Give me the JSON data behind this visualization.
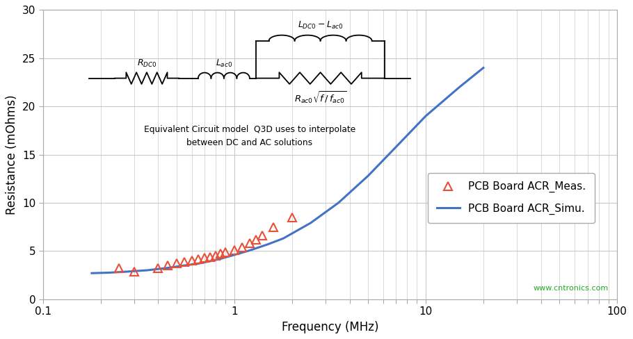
{
  "meas_freq": [
    0.25,
    0.3,
    0.4,
    0.45,
    0.5,
    0.55,
    0.6,
    0.65,
    0.7,
    0.75,
    0.8,
    0.85,
    0.9,
    1.0,
    1.1,
    1.2,
    1.3,
    1.4,
    1.6,
    2.0
  ],
  "meas_res": [
    3.2,
    2.85,
    3.2,
    3.5,
    3.7,
    3.9,
    4.0,
    4.15,
    4.3,
    4.4,
    4.55,
    4.7,
    4.85,
    5.1,
    5.4,
    5.8,
    6.2,
    6.6,
    7.5,
    8.5
  ],
  "simu_freq": [
    0.18,
    0.22,
    0.27,
    0.35,
    0.45,
    0.55,
    0.65,
    0.75,
    0.85,
    1.0,
    1.2,
    1.5,
    1.8,
    2.5,
    3.5,
    5.0,
    7.0,
    10.0,
    15.0,
    20.0
  ],
  "simu_res": [
    2.7,
    2.75,
    2.85,
    3.0,
    3.25,
    3.5,
    3.7,
    3.95,
    4.2,
    4.6,
    5.05,
    5.7,
    6.3,
    7.9,
    10.0,
    12.8,
    15.8,
    19.0,
    22.0,
    24.0
  ],
  "xlim": [
    0.1,
    100
  ],
  "ylim": [
    0,
    30
  ],
  "yticks": [
    0,
    5,
    10,
    15,
    20,
    25,
    30
  ],
  "xlabel": "Frequency (MHz)",
  "ylabel": "Resistance (mOhms)",
  "line_color": "#4472C4",
  "marker_edge_color": "#E8503A",
  "legend_meas": "PCB Board ACR_Meas.",
  "legend_simu": "PCB Board ACR_Simu.",
  "watermark": "www.cntronics.com",
  "bg_color": "#FFFFFF",
  "grid_color": "#C8C8C8"
}
